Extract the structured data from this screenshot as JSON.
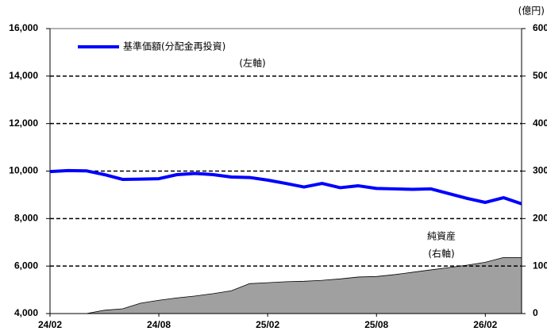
{
  "chart_data": {
    "type": "line",
    "categories": [
      "24/02",
      null,
      null,
      null,
      null,
      null,
      "24/08",
      null,
      null,
      null,
      null,
      null,
      "25/02",
      null,
      null,
      null,
      null,
      null,
      "25/08",
      null,
      null,
      null,
      null,
      null,
      "26/02",
      null,
      null
    ],
    "series": [
      {
        "name": "基準価額(分配金再投資)",
        "name_note": "(左軸)",
        "type": "line",
        "color": "#0000ff",
        "values": [
          9980,
          10020,
          10010,
          9850,
          9650,
          9660,
          9680,
          9850,
          9900,
          9850,
          9750,
          9730,
          9620,
          9480,
          9330,
          9480,
          9300,
          9380,
          9270,
          9250,
          9230,
          9250,
          9050,
          8850,
          8680,
          8880,
          8620
        ]
      },
      {
        "name": "純資産",
        "name_note": "(右軸)",
        "type": "area",
        "axis": "y2",
        "color": "#a0a0a0",
        "values": [
          0,
          0,
          0,
          7,
          10,
          22,
          28,
          33,
          37,
          42,
          48,
          63,
          65,
          67,
          68,
          70,
          73,
          77,
          78,
          82,
          87,
          92,
          97,
          102,
          108,
          118,
          118
        ]
      }
    ],
    "ylim": [
      4000,
      16000
    ],
    "yticks": [
      {
        "value": 4000,
        "label": "4,000"
      },
      {
        "value": 6000,
        "label": "6,000"
      },
      {
        "value": 8000,
        "label": "8,000"
      },
      {
        "value": 10000,
        "label": "10,000"
      },
      {
        "value": 12000,
        "label": "12,000"
      },
      {
        "value": 14000,
        "label": "14,000"
      },
      {
        "value": 16000,
        "label": "16,000"
      }
    ],
    "y2lim": [
      0,
      600
    ],
    "y2ticks": [
      0,
      100,
      200,
      300,
      400,
      500,
      600
    ],
    "y2_unit": "(億円)",
    "grid": true
  }
}
